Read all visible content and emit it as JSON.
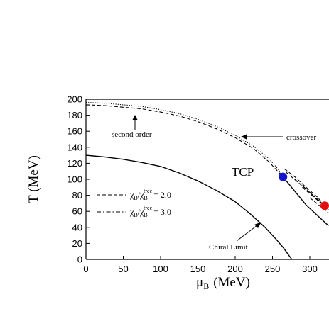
{
  "chart_data": {
    "type": "line",
    "title": "",
    "xlabel": {
      "symbol": "μ",
      "subscript": "B",
      "unit": "(MeV)"
    },
    "ylabel": "T (MeV)",
    "xlim": [
      0,
      325
    ],
    "ylim": [
      0,
      200
    ],
    "xticks": [
      0,
      50,
      100,
      150,
      200,
      250,
      300
    ],
    "yticks": [
      0,
      20,
      40,
      60,
      80,
      100,
      120,
      140,
      160,
      180,
      200
    ],
    "series": [
      {
        "style": "solid",
        "color": "#000000",
        "points": [
          [
            0,
            130
          ],
          [
            25,
            128
          ],
          [
            50,
            125
          ],
          [
            75,
            121
          ],
          [
            100,
            116
          ],
          [
            125,
            108
          ],
          [
            150,
            98
          ],
          [
            175,
            86
          ],
          [
            200,
            72
          ],
          [
            220,
            57
          ],
          [
            240,
            40
          ],
          [
            255,
            25
          ],
          [
            265,
            14
          ],
          [
            272,
            5
          ],
          [
            276,
            0
          ]
        ]
      },
      {
        "style": "dotted",
        "color": "#000000",
        "points": [
          [
            0,
            196
          ],
          [
            25,
            195
          ],
          [
            50,
            193
          ],
          [
            75,
            191
          ],
          [
            100,
            187
          ],
          [
            125,
            182
          ],
          [
            150,
            175
          ],
          [
            175,
            166
          ],
          [
            200,
            155
          ],
          [
            225,
            141
          ],
          [
            245,
            126
          ],
          [
            258,
            112
          ],
          [
            264,
            103
          ]
        ]
      },
      {
        "style": "dashed",
        "color": "#000000",
        "points": [
          [
            0,
            193
          ],
          [
            25,
            192
          ],
          [
            50,
            190
          ],
          [
            75,
            188
          ],
          [
            100,
            184
          ],
          [
            125,
            179
          ],
          [
            150,
            172
          ],
          [
            175,
            163
          ],
          [
            200,
            152
          ],
          [
            225,
            138
          ],
          [
            245,
            122
          ],
          [
            258,
            109
          ],
          [
            264,
            103
          ]
        ]
      },
      {
        "style": "solid",
        "color": "#000000",
        "points": [
          [
            264,
            103
          ],
          [
            280,
            85
          ],
          [
            295,
            68
          ],
          [
            310,
            55
          ],
          [
            325,
            42
          ]
        ]
      },
      {
        "style": "dashed",
        "color": "#000000",
        "points": [
          [
            266,
            113
          ],
          [
            280,
            103
          ],
          [
            295,
            90
          ],
          [
            310,
            78
          ],
          [
            320,
            67
          ]
        ]
      },
      {
        "style": "dashed",
        "color": "#000000",
        "points": [
          [
            268,
            109
          ],
          [
            282,
            98
          ],
          [
            297,
            86
          ],
          [
            310,
            75
          ],
          [
            320,
            67
          ]
        ]
      },
      {
        "style": "dashdot",
        "color": "#000000",
        "points": [
          [
            280,
            100
          ],
          [
            295,
            88
          ],
          [
            308,
            77
          ],
          [
            320,
            67
          ]
        ]
      },
      {
        "style": "dashed",
        "color": "#000000",
        "points": [
          [
            290,
            90
          ],
          [
            305,
            78
          ],
          [
            318,
            68
          ],
          [
            325,
            62
          ]
        ]
      },
      {
        "style": "dashed",
        "color": "#000000",
        "points": [
          [
            300,
            77
          ],
          [
            312,
            68
          ],
          [
            325,
            58
          ]
        ]
      }
    ],
    "markers": [
      {
        "x": 264,
        "y": 103,
        "color": "#1414cc"
      },
      {
        "x": 320,
        "y": 67,
        "color": "#e01010"
      }
    ],
    "legend": {
      "placement": "center-left",
      "entries": [
        {
          "style": "dashed",
          "pre": "χ",
          "sub1": "B",
          "mid": "/χ",
          "sub2": "B",
          "sup": "free",
          "value": "= 2.0"
        },
        {
          "style": "dashdot",
          "pre": "χ",
          "sub1": "B",
          "mid": "/χ",
          "sub2": "B",
          "sup": "free",
          "value": "= 3.0"
        }
      ]
    },
    "annotations": [
      {
        "text": "second order",
        "arrow": "up"
      },
      {
        "text": "crossover",
        "arrow": "left"
      },
      {
        "text": "TCP",
        "arrow": "none"
      },
      {
        "text": "Chiral Limit",
        "arrow": "up-right"
      }
    ]
  }
}
